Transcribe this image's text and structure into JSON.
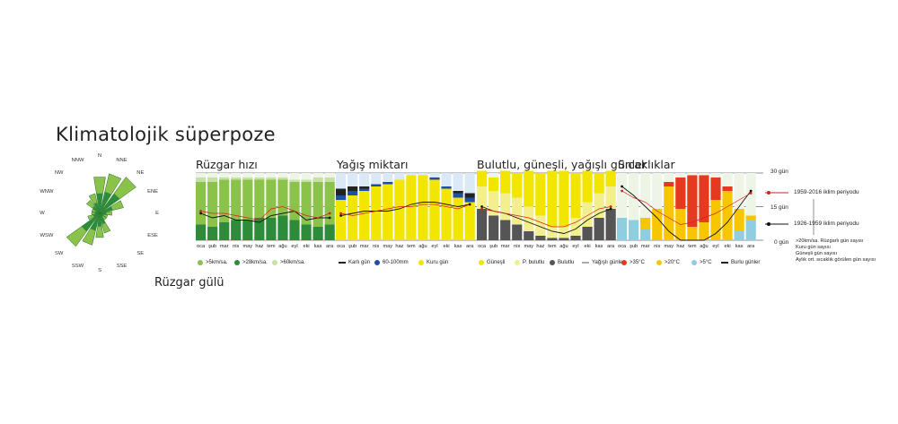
{
  "title": "Klimatolojik süperpoze",
  "rose_caption": "Rüzgar gülü",
  "panels": {
    "wind": "Rüzgar hızı",
    "rain": "Yağış miktarı",
    "cloud": "Bulutlu, güneşli, yağışlı günler",
    "temp": "Sıcaklıklar"
  },
  "axis": {
    "top": "30 gün",
    "mid": "15 gün",
    "bottom": "0 gün"
  },
  "periods": {
    "recent": "1959-2016 iklim periyodu",
    "old": "1926-1959 iklim periyodu"
  },
  "notes": [
    ">20km/sa. Rüzgarlı gün sayısı",
    "Kuru gün sayısı",
    "Güneşli gün sayısı",
    "Aylık ort. sıcaklık görülen gün sayısı"
  ],
  "colors": {
    "wind5": "#8bc34a",
    "wind28": "#2e8b3a",
    "wind60": "#c5e1a5",
    "snow": "#222222",
    "heavyRain": "#1f4fa3",
    "dry": "#f2e600",
    "sunny": "#f2e600",
    "partly": "#f3ef8f",
    "cloudy": "#555555",
    "hot35": "#e53a1f",
    "warm20": "#f7c600",
    "mild5": "#8fcde0",
    "recent": "#d62020",
    "old": "#111111"
  },
  "legend": {
    "wind": [
      ">5km/sa.",
      ">28km/sa.",
      ">60km/sa."
    ],
    "rain": [
      "Karlı gün",
      "60-100mm",
      "Kuru gün"
    ],
    "cloud": [
      "Güneşli",
      "P. bulutlu",
      "Bulutlu",
      "Yağışlı günler"
    ],
    "temp": [
      ">35°C",
      ">20°C",
      ">5°C",
      "Burlu günler"
    ]
  },
  "rose": {
    "directions": [
      "N",
      "NNE",
      "NE",
      "ENE",
      "E",
      "ESE",
      "SE",
      "SSE",
      "S",
      "SSW",
      "SW",
      "WSW",
      "W",
      "WNW",
      "NW",
      "NNW"
    ],
    "values": [
      9,
      10,
      11,
      6,
      3,
      2,
      2,
      5,
      6,
      8,
      10,
      3,
      2,
      2,
      4,
      5
    ]
  },
  "chart_data": {
    "type": "bar",
    "categories": [
      "oca",
      "şub",
      "mar",
      "nis",
      "may",
      "haz",
      "tem",
      "ağu",
      "eyl",
      "eki",
      "kas",
      "ara"
    ],
    "ylim": [
      0,
      30
    ],
    "panels": [
      {
        "name": "Rüzgar hızı",
        "series": [
          {
            "name": ">28km/sa.",
            "values": [
              7,
              6,
              8,
              9,
              9,
              10,
              10,
              11,
              9,
              7,
              6,
              7
            ]
          },
          {
            "name": ">5km/sa.",
            "values": [
              19,
              20,
              19,
              18,
              18,
              17,
              17,
              16,
              17,
              19,
              20,
              19
            ]
          },
          {
            "name": ">60km/sa.",
            "values": [
              2,
              2,
              1,
              1,
              1,
              1,
              1,
              1,
              1,
              1,
              2,
              2
            ]
          }
        ],
        "line_recent": [
          13,
          12,
          12,
          11,
          10,
          9,
          14,
          15,
          13,
          11,
          10,
          12
        ],
        "line_old": [
          12,
          10,
          11,
          9,
          9,
          8,
          11,
          12,
          13,
          9,
          10,
          10
        ]
      },
      {
        "name": "Yağış miktarı",
        "series": [
          {
            "name": "Kuru gün",
            "values": [
              18,
              20,
              22,
              24,
              25,
              27,
              29,
              29,
              27,
              23,
              19,
              17
            ]
          },
          {
            "name": "60-100mm",
            "values": [
              2,
              2,
              1,
              1,
              1,
              0,
              0,
              0,
              1,
              1,
              2,
              2
            ]
          },
          {
            "name": "Karlı gün",
            "values": [
              3,
              2,
              1,
              0,
              0,
              0,
              0,
              0,
              0,
              0,
              1,
              2
            ]
          }
        ],
        "line_recent": [
          12,
          11,
          12,
          13,
          14,
          15,
          15,
          16,
          16,
          15,
          14,
          16
        ],
        "line_old": [
          11,
          12,
          13,
          13,
          13,
          14,
          16,
          17,
          17,
          16,
          15,
          16
        ]
      },
      {
        "name": "Bulutlu, güneşli, yağışlı günler",
        "series": [
          {
            "name": "Bulutlu",
            "values": [
              14,
              11,
              9,
              7,
              4,
              2,
              1,
              1,
              2,
              6,
              10,
              14
            ]
          },
          {
            "name": "P. bulutlu",
            "values": [
              10,
              11,
              12,
              12,
              11,
              9,
              5,
              5,
              8,
              11,
              11,
              10
            ]
          },
          {
            "name": "Güneşli",
            "values": [
              7,
              6,
              10,
              11,
              16,
              19,
              25,
              25,
              20,
              14,
              9,
              7
            ]
          }
        ],
        "line_recent": [
          14,
          13,
          12,
          11,
          10,
          8,
          6,
          6,
          8,
          11,
          14,
          15
        ],
        "line_old": [
          15,
          13,
          12,
          10,
          8,
          6,
          4,
          3,
          5,
          9,
          12,
          14
        ]
      },
      {
        "name": "Sıcaklıklar",
        "series": [
          {
            "name": ">5°C",
            "values": [
              10,
              9,
              5,
              0,
              0,
              0,
              0,
              0,
              0,
              0,
              4,
              9
            ]
          },
          {
            "name": ">20°C",
            "values": [
              0,
              0,
              5,
              14,
              24,
              14,
              6,
              8,
              18,
              22,
              10,
              2
            ]
          },
          {
            "name": ">35°C",
            "values": [
              0,
              0,
              0,
              0,
              2,
              14,
              23,
              21,
              10,
              2,
              0,
              0
            ]
          }
        ],
        "line_recent": [
          22,
          19,
          17,
          13,
          10,
          7,
          8,
          10,
          12,
          15,
          18,
          21
        ],
        "line_old": [
          24,
          20,
          15,
          10,
          4,
          0,
          0,
          0,
          3,
          8,
          15,
          22
        ]
      }
    ]
  }
}
